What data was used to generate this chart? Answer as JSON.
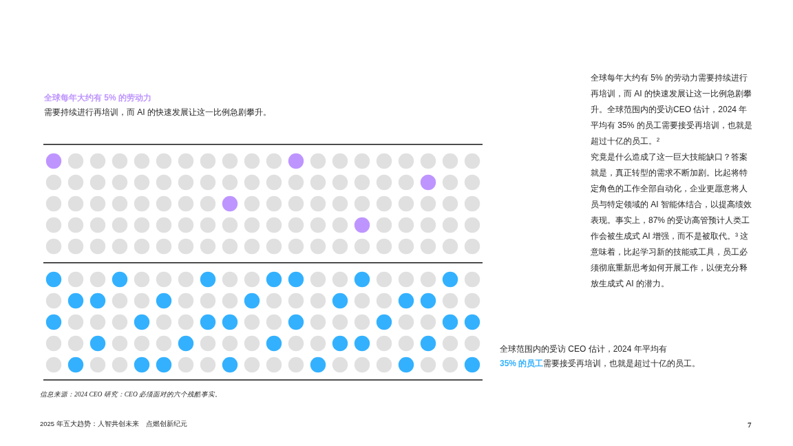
{
  "chart_data": [
    {
      "type": "other",
      "title": "全球每年大约有 ",
      "series": [
        {
          "name": "的劳动力",
          "color": "#be95ff",
          "values": [
            5
          ],
          "value_labels": [
            "5%"
          ]
        }
      ],
      "subtitle": "需要持续进行再培训，而 AI 的快速发展让这一比例急剧攀升。"
    },
    {
      "type": "other",
      "title": "全球范围内的受访 CEO 估计，2024 年平均有 ",
      "series": [
        {
          "name": "的员工",
          "color": "#33b1ff",
          "values": [
            35
          ],
          "value_labels": [
            "35%"
          ]
        }
      ],
      "subtitle": "需要接受再培训，也就是超过十亿的员工。",
      "annotations": [
        "信息来源：2024 CEO 研究：CEO 必须面对的六个残酷事实。"
      ]
    },
    {
      "type": "other",
      "annotations": [
        "全球每年大约有 5% 的劳动力需要持续进行再培训，而 AI 的快速发展让这一比例急剧攀升。全球范围内的受访CEO 估计，2024 年平均有 35% 的员工需要接受再培训，也就是超过十亿的员工。²",
        "究竟是什么造成了这一巨大技能缺口？答案就是，真正转型的需求不断加剧。比起将特定角色的工作全部自动化，企业更愿意将人员与特定领域的 AI 智能体结合，以提高绩效表现。事实上，87% 的受访高管预计人类工作会被生成式 AI 增强，而不是被取代。³ 这意味着，比起学习新的技能或工具，员工必须彻底重新思考如何开展工作，以便充分释放生成式 AI 的潜力。",
        "2025 年五大趋势：人智共创未来　点燃创新纪元",
        "7"
      ]
    }
  ]
}
